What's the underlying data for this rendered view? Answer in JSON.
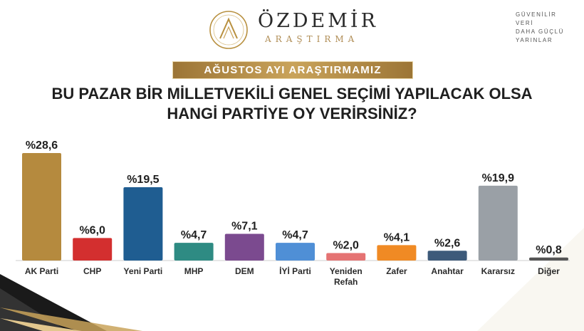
{
  "brand": {
    "name": "ÖZDEMİR",
    "subtitle": "ARAŞTIRMA",
    "slogan": [
      "GÜVENİLİR",
      "VERİ",
      "DAHA GÜÇLÜ",
      "YARINLAR"
    ]
  },
  "banner": "AĞUSTOS AYI ARAŞTIRMAMIZ",
  "question": {
    "line1": "BU PAZAR BİR MİLLETVEKİLİ GENEL SEÇİMİ YAPILACAK OLSA",
    "line2": "HANGİ PARTİYE OY VERİRSİNİZ?"
  },
  "colors": {
    "gold": "#b8903f",
    "dark": "#1a1a1a"
  },
  "chart_data": {
    "type": "bar",
    "categories": [
      "AK Parti",
      "CHP",
      "Yeni Parti",
      "MHP",
      "DEM",
      "İYİ Parti",
      "Yeniden Refah",
      "Zafer",
      "Anahtar",
      "Kararsız",
      "Diğer"
    ],
    "values": [
      28.6,
      6.0,
      19.5,
      4.7,
      7.1,
      4.7,
      2.0,
      4.1,
      2.6,
      19.9,
      0.8
    ],
    "value_labels": [
      "%28,6",
      "%6,0",
      "%19,5",
      "%4,7",
      "%7,1",
      "%4,7",
      "%2,0",
      "%4,1",
      "%2,6",
      "%19,9",
      "%0,8"
    ],
    "colors": [
      "#b58a3e",
      "#d32f2f",
      "#1f5d91",
      "#2e8b83",
      "#7b4a8f",
      "#4f8fd6",
      "#e57373",
      "#f08a24",
      "#3d5a7a",
      "#9aa0a6",
      "#555555"
    ],
    "ylim": [
      0,
      30
    ],
    "grid": false,
    "legend": "none"
  }
}
